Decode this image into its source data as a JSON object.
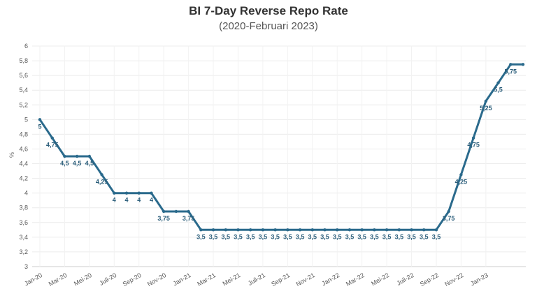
{
  "chart_data": {
    "type": "line",
    "title": "BI 7-Day Reverse Repo Rate",
    "subtitle": "(2020-Februari 2023)",
    "xlabel": "",
    "ylabel": "%",
    "ylim": [
      3,
      6
    ],
    "yticks": [
      "3",
      "3,2",
      "3,4",
      "3,6",
      "3,8",
      "4",
      "4,2",
      "4,4",
      "4,6",
      "4,8",
      "5",
      "5,2",
      "5,4",
      "5,6",
      "5,8",
      "6"
    ],
    "xtick_labels": [
      "Jan-20",
      "Mar-20",
      "Mei-20",
      "Juli-20",
      "Sep-20",
      "Nov-20",
      "Jan-21",
      "Mar-21",
      "Mei-21",
      "Juli-21",
      "Sep-21",
      "Nov-21",
      "Jan-22",
      "Mar-22",
      "Mei-22",
      "Juli-22",
      "Sep-22",
      "Nov-22",
      "Jan-23"
    ],
    "grid": true,
    "line_color": "#2a6a8c",
    "values": [
      5,
      4.75,
      4.5,
      4.5,
      4.5,
      4.25,
      4,
      4,
      4,
      4,
      3.75,
      3.75,
      3.75,
      3.5,
      3.5,
      3.5,
      3.5,
      3.5,
      3.5,
      3.5,
      3.5,
      3.5,
      3.5,
      3.5,
      3.5,
      3.5,
      3.5,
      3.5,
      3.5,
      3.5,
      3.5,
      3.5,
      3.5,
      3.75,
      4.25,
      4.75,
      5.25,
      5.5,
      5.75,
      5.75
    ],
    "data_labels": [
      "5",
      "4,75",
      "4,5",
      "4,5",
      "4,5",
      "4,25",
      "4",
      "4",
      "4",
      "4",
      "3,75",
      "",
      "3,75",
      "3,5",
      "3,5",
      "3,5",
      "3,5",
      "3,5",
      "3,5",
      "3,5",
      "3,5",
      "3,5",
      "3,5",
      "3,5",
      "3,5",
      "3,5",
      "3,5",
      "3,5",
      "3,5",
      "3,5",
      "3,5",
      "3,5",
      "3,5",
      "3,75",
      "4,25",
      "4,75",
      "5,25",
      "5,5",
      "5,75",
      ""
    ]
  }
}
